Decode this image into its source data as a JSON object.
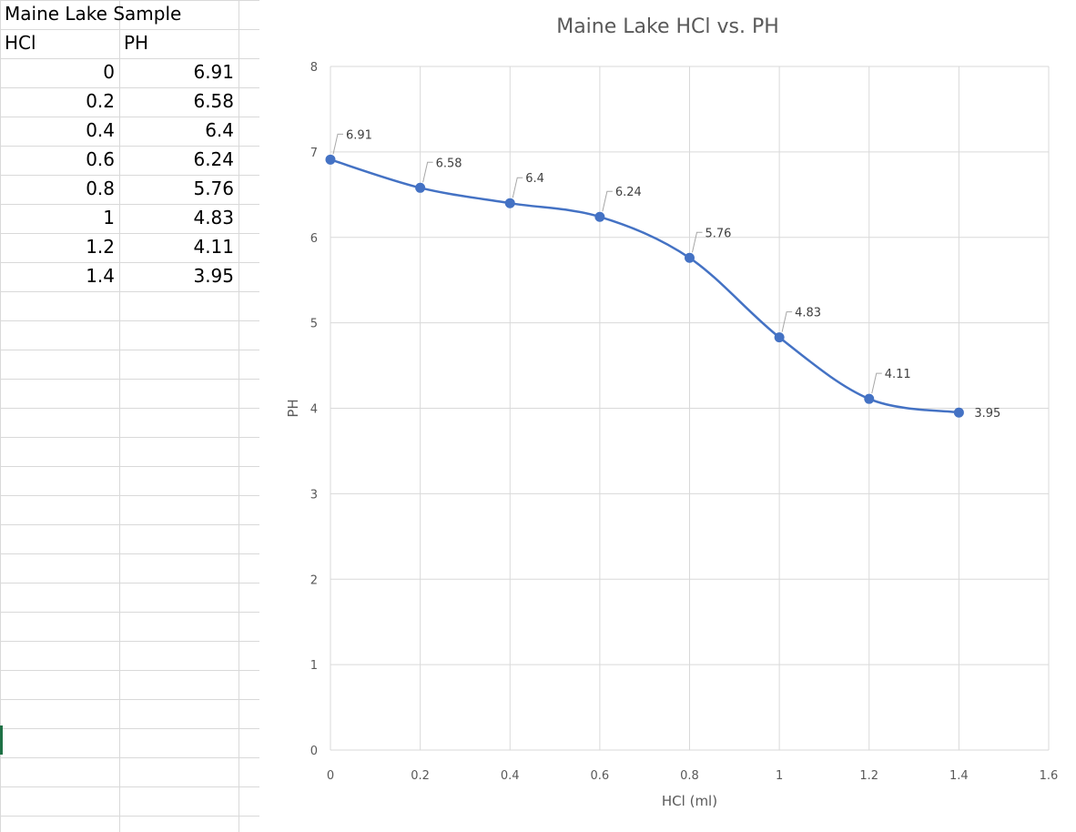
{
  "sheet": {
    "title": "Maine Lake Sample",
    "headers": [
      "HCl",
      "PH"
    ],
    "rows": [
      [
        "0",
        "6.91"
      ],
      [
        "0.2",
        "6.58"
      ],
      [
        "0.4",
        "6.4"
      ],
      [
        "0.6",
        "6.24"
      ],
      [
        "0.8",
        "5.76"
      ],
      [
        "1",
        "4.83"
      ],
      [
        "1.2",
        "4.11"
      ],
      [
        "1.4",
        "3.95"
      ]
    ]
  },
  "chart_data": {
    "type": "scatter",
    "title": "Maine Lake HCl vs. PH",
    "xlabel": "HCl (ml)",
    "ylabel": "PH",
    "xlim": [
      0,
      1.6
    ],
    "ylim": [
      0,
      8
    ],
    "xticks": [
      "0",
      "0.2",
      "0.4",
      "0.6",
      "0.8",
      "1",
      "1.2",
      "1.4",
      "1.6"
    ],
    "yticks": [
      "0",
      "1",
      "2",
      "3",
      "4",
      "5",
      "6",
      "7",
      "8"
    ],
    "grid": true,
    "smooth_line": true,
    "series": [
      {
        "x": [
          0,
          0.2,
          0.4,
          0.6,
          0.8,
          1,
          1.2,
          1.4
        ],
        "y": [
          6.91,
          6.58,
          6.4,
          6.24,
          5.76,
          4.83,
          4.11,
          3.95
        ],
        "labels": [
          "6.91",
          "6.58",
          "6.4",
          "6.24",
          "5.76",
          "4.83",
          "4.11",
          "3.95"
        ],
        "color": "#4472c4"
      }
    ]
  }
}
